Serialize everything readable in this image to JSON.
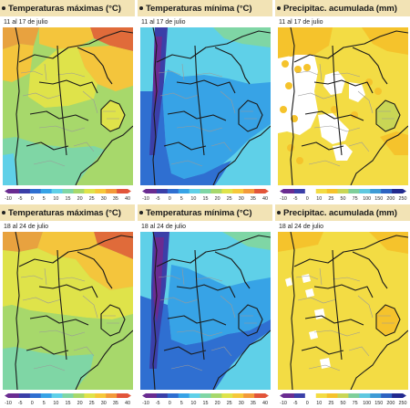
{
  "panels": [
    {
      "id": "tmax-1",
      "title": "Temperaturas máximas (°C)",
      "period": "11 al 17 de julio",
      "kind": "tmax",
      "legend": [
        "-10",
        "-5",
        "0",
        "5",
        "10",
        "15",
        "20",
        "25",
        "30",
        "35",
        "40"
      ]
    },
    {
      "id": "tmin-1",
      "title": "Temperaturas mínima (°C)",
      "period": "11 al 17 de julio",
      "kind": "tmin",
      "legend": [
        "-10",
        "-5",
        "0",
        "5",
        "10",
        "15",
        "20",
        "25",
        "30",
        "35",
        "40"
      ]
    },
    {
      "id": "precip-1",
      "title": "Precipitac. acumulada (mm)",
      "period": "11 al 17 de julio",
      "kind": "precip1",
      "legend": [
        "-10",
        "-5",
        "0",
        "10",
        "25",
        "50",
        "75",
        "100",
        "150",
        "200",
        "250"
      ]
    },
    {
      "id": "tmax-2",
      "title": "Temperaturas máximas (°C)",
      "period": "18 al 24 de julio",
      "kind": "tmax2",
      "legend": [
        "-10",
        "-5",
        "0",
        "5",
        "10",
        "15",
        "20",
        "25",
        "30",
        "35",
        "40"
      ]
    },
    {
      "id": "tmin-2",
      "title": "Temperaturas mínima (°C)",
      "period": "18 al 24 de julio",
      "kind": "tmin2",
      "legend": [
        "-10",
        "-5",
        "0",
        "5",
        "10",
        "15",
        "20",
        "25",
        "30",
        "35",
        "40"
      ]
    },
    {
      "id": "precip-2",
      "title": "Precipitac. acumulada (mm)",
      "period": "18 al 24 de julio",
      "kind": "precip2",
      "legend": [
        "-10",
        "-5",
        "0",
        "10",
        "25",
        "50",
        "75",
        "100",
        "150",
        "200",
        "250"
      ]
    }
  ],
  "colors": {
    "header_bg": "#f2e3b5",
    "temp_scale": [
      "#6a2c91",
      "#3b3fa8",
      "#2f6fd1",
      "#37a3e6",
      "#5fd0e8",
      "#7fd6a5",
      "#a7d86b",
      "#dfe34a",
      "#f6c83a",
      "#f39a3a",
      "#e2553a"
    ],
    "precip_scale": [
      "#6a2c91",
      "#3b3fa8",
      "#ffffff",
      "#f3dc44",
      "#f5c32c",
      "#c9d655",
      "#7fcf9a",
      "#5fc8e0",
      "#3e9bd6",
      "#2d63c2",
      "#222a8f"
    ]
  }
}
